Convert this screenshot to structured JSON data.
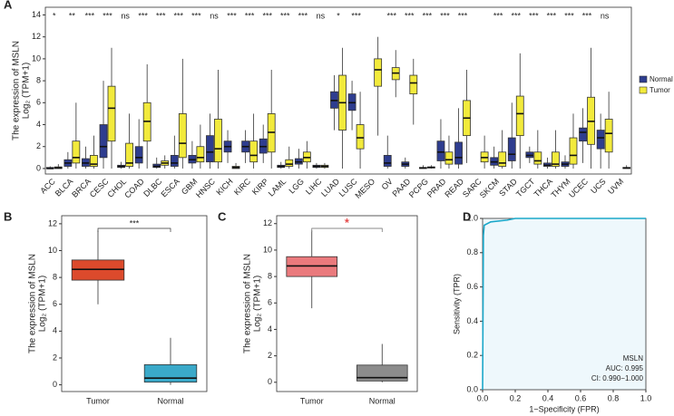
{
  "chart_data": [
    {
      "type": "box",
      "label": "A",
      "ylabel": [
        "The expression of MSLN",
        "Log₂ (TPM+1)"
      ],
      "categories": [
        "ACC",
        "BLCA",
        "BRCA",
        "CESC",
        "CHOL",
        "COAD",
        "DLBC",
        "ESCA",
        "GBM",
        "HNSC",
        "KICH",
        "KIRC",
        "KIRP",
        "LAML",
        "LGG",
        "LIHC",
        "LUAD",
        "LUSC",
        "MESO",
        "OV",
        "PAAD",
        "PCPG",
        "PRAD",
        "READ",
        "SARC",
        "SKCM",
        "STAD",
        "TGCT",
        "THCA",
        "THYM",
        "UCEC",
        "UCS",
        "UVM"
      ],
      "significance": [
        "*",
        "**",
        "***",
        "***",
        "ns",
        "***",
        "***",
        "***",
        "***",
        "ns",
        "***",
        "***",
        "***",
        "***",
        "***",
        "ns",
        "*",
        "***",
        null,
        "***",
        "***",
        "***",
        "***",
        "***",
        null,
        "***",
        "***",
        "***",
        "***",
        "***",
        "***",
        "ns",
        null
      ],
      "series": [
        {
          "name": "Normal",
          "color": "#2e3d8f",
          "values": [
            [
              0,
              0,
              0,
              0.1,
              0.2
            ],
            [
              0,
              0.2,
              0.5,
              0.8,
              1.5
            ],
            [
              0,
              0.2,
              0.5,
              0.9,
              2
            ],
            [
              0,
              1,
              2,
              4,
              8
            ],
            [
              0,
              0.1,
              0.2,
              0.3,
              0.6
            ],
            [
              0,
              0.5,
              1,
              2,
              4.5
            ],
            [
              0,
              0.1,
              0.2,
              0.4,
              1
            ],
            [
              0,
              0.2,
              0.5,
              1.2,
              3
            ],
            [
              0,
              0.5,
              0.8,
              1.2,
              2.5
            ],
            [
              0,
              0.6,
              1.5,
              3,
              5
            ],
            [
              0.5,
              1.5,
              2,
              2.5,
              3.5
            ],
            [
              0.5,
              1.5,
              2,
              2.5,
              3.5
            ],
            [
              0.5,
              1.4,
              2,
              2.7,
              4
            ],
            [
              0,
              0.1,
              0.2,
              0.3,
              0.6
            ],
            [
              0,
              0.4,
              0.6,
              0.9,
              1.8
            ],
            [
              0,
              0.1,
              0.2,
              0.3,
              0.5
            ],
            [
              3.5,
              5.5,
              6.2,
              7,
              8.5
            ],
            [
              3.5,
              5.3,
              6,
              6.8,
              8
            ],
            null,
            [
              0,
              0.2,
              0.5,
              1.2,
              3
            ],
            [
              0,
              0.2,
              0.4,
              0.6,
              1
            ],
            [
              0,
              0,
              0.05,
              0.1,
              0.3
            ],
            [
              0,
              0.7,
              1.5,
              2.5,
              4.5
            ],
            [
              0,
              0.4,
              1,
              2.4,
              5.5
            ],
            null,
            [
              0,
              0.3,
              0.6,
              1,
              2
            ],
            [
              0,
              0.7,
              1.3,
              2.8,
              6
            ],
            [
              0.5,
              1,
              1.2,
              1.5,
              2
            ],
            [
              0,
              0.2,
              0.3,
              0.5,
              1
            ],
            [
              0,
              0.2,
              0.4,
              0.6,
              1.2
            ],
            [
              0.5,
              2.5,
              3.3,
              3.7,
              5.5
            ],
            [
              0,
              1.8,
              2.8,
              3.5,
              5
            ],
            null
          ]
        },
        {
          "name": "Tumor",
          "color": "#f2ea3c",
          "values": [
            [
              0,
              0,
              0.05,
              0.15,
              0.4
            ],
            [
              0,
              0.5,
              1,
              2.5,
              6
            ],
            [
              0,
              0.2,
              0.4,
              1.2,
              3
            ],
            [
              0,
              2.5,
              5.5,
              7.5,
              11
            ],
            [
              0,
              0.2,
              0.5,
              2.3,
              5
            ],
            [
              0,
              2.5,
              4.3,
              6,
              9.5
            ],
            [
              0,
              0.3,
              0.5,
              0.7,
              1.2
            ],
            [
              0,
              1,
              2.3,
              5,
              10
            ],
            [
              0,
              0.6,
              1,
              2,
              4
            ],
            [
              0,
              0.6,
              1.8,
              4.5,
              9
            ],
            [
              0,
              0,
              0.1,
              0.2,
              0.5
            ],
            [
              0,
              0.6,
              1.2,
              2.5,
              5
            ],
            [
              0,
              1.5,
              3.3,
              5,
              9
            ],
            [
              0,
              0.2,
              0.4,
              0.8,
              2
            ],
            [
              0,
              0.6,
              1,
              1.5,
              2.5
            ],
            [
              0,
              0.1,
              0.2,
              0.3,
              0.5
            ],
            [
              0,
              3.5,
              6,
              8.5,
              11
            ],
            [
              0,
              1.8,
              2.8,
              4,
              7
            ],
            [
              3,
              7.5,
              9,
              10,
              12
            ],
            [
              6.5,
              8.1,
              8.7,
              9.2,
              10.8
            ],
            [
              4,
              6.8,
              7.8,
              8.5,
              10
            ],
            [
              0,
              0.05,
              0.1,
              0.15,
              0.3
            ],
            [
              0,
              0.4,
              0.8,
              1.5,
              3
            ],
            [
              0.5,
              3,
              4.6,
              6.2,
              9
            ],
            [
              0,
              0.6,
              1,
              1.5,
              3
            ],
            [
              0,
              0.2,
              0.5,
              1.5,
              3.5
            ],
            [
              0,
              3,
              5,
              6.6,
              10.5
            ],
            [
              0,
              0.4,
              0.7,
              1.5,
              3.5
            ],
            [
              0,
              0.2,
              0.4,
              1.5,
              3.5
            ],
            [
              0,
              0.4,
              1.2,
              2.8,
              5
            ],
            [
              0,
              2.2,
              4.3,
              6.5,
              11
            ],
            [
              0,
              1.5,
              3.2,
              4.5,
              7
            ],
            [
              0,
              0,
              0.05,
              0.1,
              0.3
            ]
          ]
        }
      ],
      "ylim": [
        -0.5,
        14.7
      ],
      "yticks": [
        0,
        2,
        4,
        6,
        8,
        10,
        12,
        14
      ]
    },
    {
      "type": "box",
      "label": "B",
      "ylabel": [
        "The expression of MSLN",
        "Log₂ (TPM+1)"
      ],
      "categories": [
        "Tumor",
        "Normal"
      ],
      "colors": [
        "#dc4a2c",
        "#3aa9c9"
      ],
      "values": [
        [
          6,
          7.8,
          8.6,
          9.3,
          11.5
        ],
        [
          0,
          0.2,
          0.5,
          1.5,
          3.5
        ]
      ],
      "annotation": "***",
      "ylim": [
        -0.5,
        12.6
      ],
      "yticks": [
        0,
        2,
        4,
        6,
        8,
        10,
        12
      ]
    },
    {
      "type": "box",
      "label": "C",
      "ylabel": [
        "The expression of MSLN",
        "Log₂ (TPM+1)"
      ],
      "categories": [
        "Tumor",
        "Normal"
      ],
      "colors": [
        "#ea7a7d",
        "#8c8c8c"
      ],
      "values": [
        [
          5.6,
          8,
          8.8,
          9.5,
          11.5
        ],
        [
          0,
          0.1,
          0.35,
          1.3,
          2.9
        ]
      ],
      "annotation": "*",
      "ylim": [
        -0.7,
        12.6
      ],
      "yticks": [
        0,
        2,
        4,
        6,
        8,
        10,
        12
      ]
    },
    {
      "type": "line",
      "label": "D",
      "xlabel": "1−Specificity (FPR)",
      "ylabel": "Sensitivity (TPR)",
      "annotations": [
        "MSLN",
        "AUC: 0.995",
        "CI: 0.990−1.000"
      ],
      "color": "#1aa7c9",
      "x": [
        0,
        0.005,
        0.01,
        0.05,
        0.15,
        0.2,
        1
      ],
      "values": [
        0,
        0.9,
        0.96,
        0.98,
        0.99,
        1,
        1
      ],
      "xlim": [
        0,
        1
      ],
      "ylim": [
        0,
        1
      ],
      "xticks": [
        {
          "value": 0,
          "label": "0.0"
        },
        {
          "value": 0.2,
          "label": "0.2"
        },
        {
          "value": 0.4,
          "label": "0.4"
        },
        {
          "value": 0.6,
          "label": "0.6"
        },
        {
          "value": 0.8,
          "label": "0.8"
        },
        {
          "value": 1,
          "label": "1.0"
        }
      ],
      "yticks": [
        {
          "value": 0,
          "label": "0.0"
        },
        {
          "value": 0.2,
          "label": "0.2"
        },
        {
          "value": 0.4,
          "label": "0.4"
        },
        {
          "value": 0.6,
          "label": "0.6"
        },
        {
          "value": 0.8,
          "label": "0.8"
        },
        {
          "value": 1,
          "label": "1.0"
        }
      ]
    }
  ]
}
